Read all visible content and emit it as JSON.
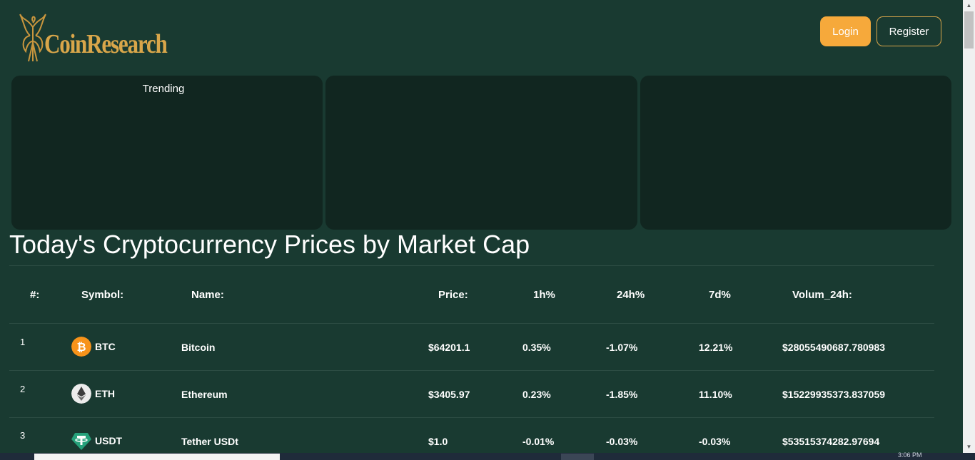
{
  "header": {
    "brand": "CoinResearch",
    "login_label": "Login",
    "register_label": "Register"
  },
  "trending": {
    "title": "Trending"
  },
  "main": {
    "title": "Today's Cryptocurrency Prices by Market Cap"
  },
  "table": {
    "columns": [
      "#:",
      "Symbol:",
      "Name:",
      "Price:",
      "1h%",
      "24h%",
      "7d%",
      "Volum_24h:"
    ],
    "rows": [
      {
        "rank": "1",
        "symbol": "BTC",
        "name": "Bitcoin",
        "price": "$64201.1",
        "h1": "0.35%",
        "h24": "-1.07%",
        "d7": "12.21%",
        "volume": "$28055490687.780983",
        "icon": "bitcoin-icon",
        "icon_color": "#f7931a"
      },
      {
        "rank": "2",
        "symbol": "ETH",
        "name": "Ethereum",
        "price": "$3405.97",
        "h1": "0.23%",
        "h24": "-1.85%",
        "d7": "11.10%",
        "volume": "$15229935373.837059",
        "icon": "ethereum-icon",
        "icon_color": "#ececec"
      },
      {
        "rank": "3",
        "symbol": "USDT",
        "name": "Tether USDt",
        "price": "$1.0",
        "h1": "-0.01%",
        "h24": "-0.03%",
        "d7": "-0.03%",
        "volume": "$53515374282.97694",
        "icon": "tether-icon",
        "icon_color": "#26a17b"
      }
    ]
  },
  "colors": {
    "background": "#193a31",
    "card": "#112620",
    "accent": "#f6a93b",
    "brand_gold": "#d9a64a"
  },
  "taskbar": {
    "clock": "3:06 PM"
  }
}
